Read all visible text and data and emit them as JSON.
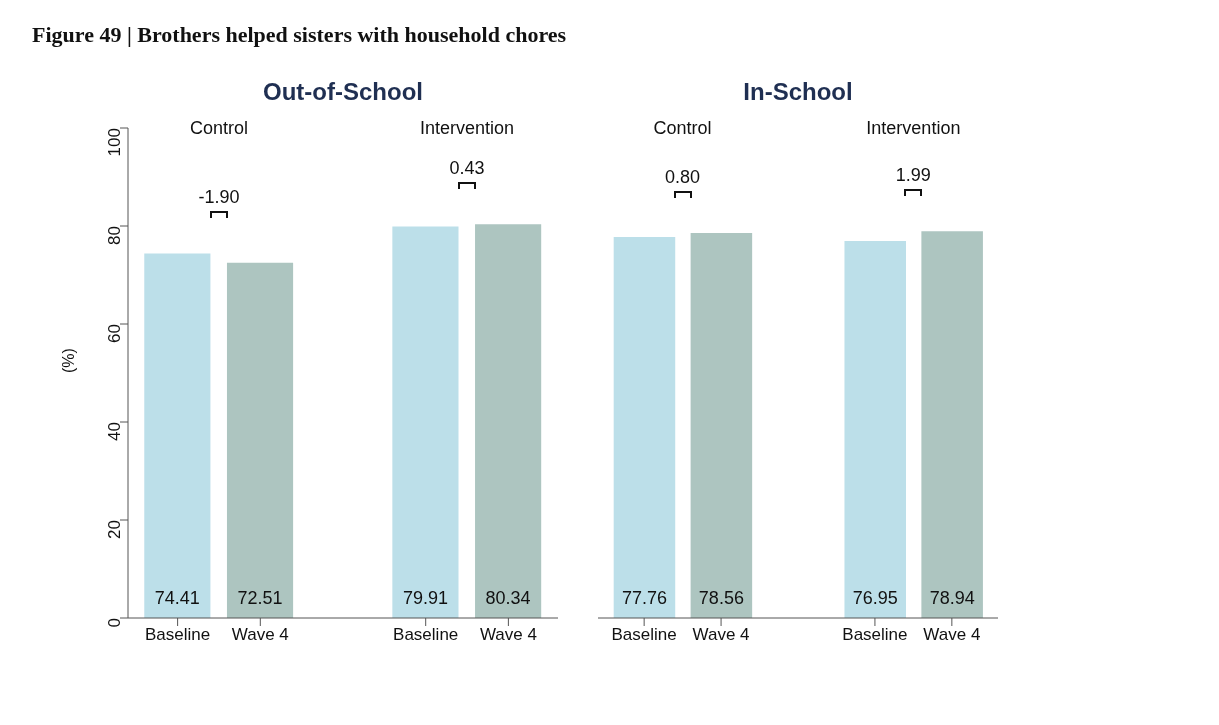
{
  "chart_data": [
    {
      "type": "bar",
      "title": "Figure 49 | Brothers helped sisters with household chores",
      "subtitle": "Out-of-School",
      "ylabel": "(%)",
      "categories": [
        "Baseline",
        "Wave 4",
        "Baseline",
        "Wave 4"
      ],
      "values": [
        74.41,
        72.51,
        79.91,
        80.34
      ],
      "colors": [
        "#bcdfe9",
        "#adc5c0",
        "#bcdfe9",
        "#adc5c0"
      ],
      "ylim": [
        0,
        100
      ],
      "yticks": [
        0,
        20,
        40,
        60,
        80,
        100
      ],
      "grid": false,
      "legend": false,
      "data_labels": true,
      "annotations": [
        "Control",
        "Intervention",
        "-1.90",
        "0.43"
      ]
    },
    {
      "type": "bar",
      "title": "In-School",
      "categories": [
        "Baseline",
        "Wave 4",
        "Baseline",
        "Wave 4"
      ],
      "values": [
        77.76,
        78.56,
        76.95,
        78.94
      ],
      "colors": [
        "#bcdfe9",
        "#adc5c0",
        "#bcdfe9",
        "#adc5c0"
      ],
      "ylim": [
        0,
        100
      ],
      "tick_labels": "x",
      "grid": false,
      "legend": false,
      "data_labels": true,
      "annotations": [
        "Control",
        "Intervention",
        "0.80",
        "1.99"
      ]
    }
  ]
}
